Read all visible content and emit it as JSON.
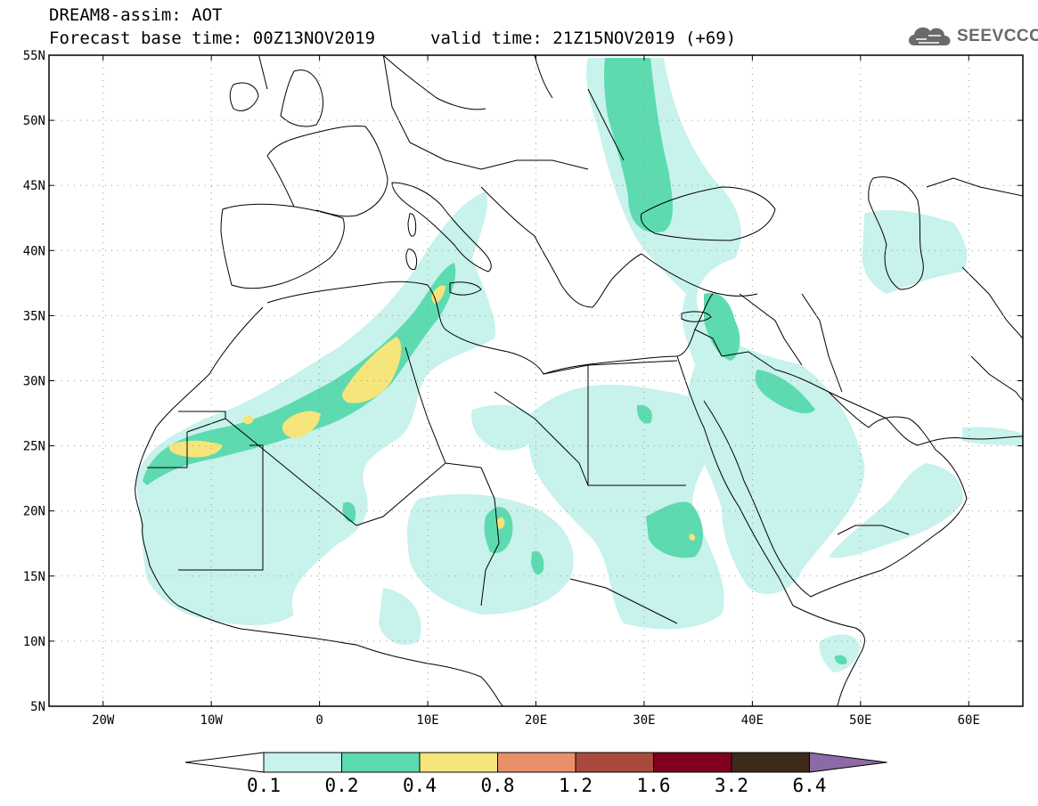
{
  "header": {
    "title": "DREAM8-assim: AOT",
    "base_time": "Forecast base time: 00Z13NOV2019",
    "valid_time": "valid time: 21Z15NOV2019 (+69)"
  },
  "logo": {
    "text": "SEEVCCC",
    "icon": "cloud-icon"
  },
  "map": {
    "lon_range": [
      -25,
      65
    ],
    "lat_range": [
      5,
      55
    ],
    "lat_ticks": [
      {
        "value": 55,
        "label": "55N"
      },
      {
        "value": 50,
        "label": "50N"
      },
      {
        "value": 45,
        "label": "45N"
      },
      {
        "value": 40,
        "label": "40N"
      },
      {
        "value": 35,
        "label": "35N"
      },
      {
        "value": 30,
        "label": "30N"
      },
      {
        "value": 25,
        "label": "25N"
      },
      {
        "value": 20,
        "label": "20N"
      },
      {
        "value": 15,
        "label": "15N"
      },
      {
        "value": 10,
        "label": "10N"
      },
      {
        "value": 5,
        "label": "5N"
      }
    ],
    "lon_ticks": [
      {
        "value": -20,
        "label": "20W"
      },
      {
        "value": -10,
        "label": "10W"
      },
      {
        "value": 0,
        "label": "0"
      },
      {
        "value": 10,
        "label": "10E"
      },
      {
        "value": 20,
        "label": "20E"
      },
      {
        "value": 30,
        "label": "30E"
      },
      {
        "value": 40,
        "label": "40E"
      },
      {
        "value": 50,
        "label": "50E"
      },
      {
        "value": 60,
        "label": "60E"
      }
    ],
    "grid": true
  },
  "colorbar": {
    "labels": [
      "0.1",
      "0.2",
      "0.4",
      "0.8",
      "1.2",
      "1.6",
      "3.2",
      "6.4"
    ],
    "colors": [
      "#ffffff",
      "#c8f2ec",
      "#5ddab0",
      "#f5e57a",
      "#e8906a",
      "#aa4a3c",
      "#800020",
      "#3c2a1a",
      "#8b6aa6"
    ]
  },
  "aot_colors": {
    "level_0_1": "#c8f2ec",
    "level_0_2": "#5ddab0",
    "level_0_4": "#f5e57a"
  }
}
